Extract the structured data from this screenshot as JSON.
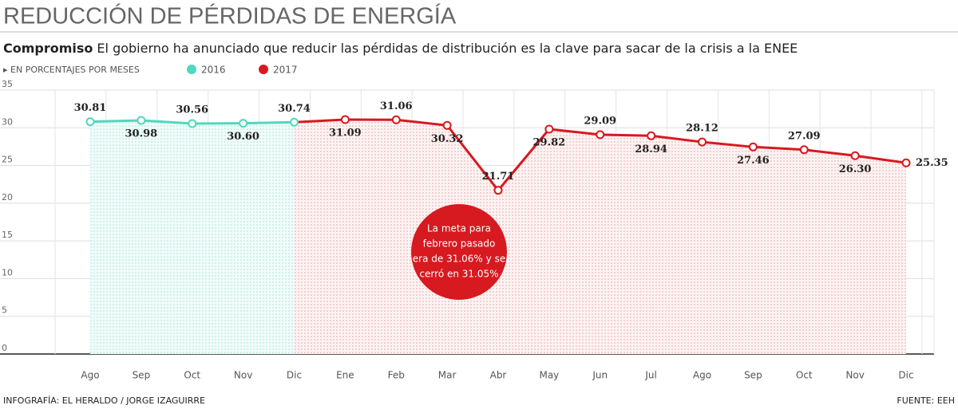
{
  "chart_data": {
    "type": "line",
    "title": "REDUCCIÓN DE PÉRDIDAS DE ENERGÍA",
    "subtitle_lead": "Compromiso",
    "subtitle": "El gobierno ha anunciado que reducir las pérdidas de distribución es la clave para sacar de la crisis a la ENEE",
    "y_label": "EN PORCENTAJES POR MESES",
    "categories": [
      "Ago",
      "Sep",
      "Oct",
      "Nov",
      "Dic",
      "Ene",
      "Feb",
      "Mar",
      "Abr",
      "May",
      "Jun",
      "Jul",
      "Ago",
      "Sep",
      "Oct",
      "Nov",
      "Dic"
    ],
    "series": [
      {
        "name": "2016",
        "color": "#4fd8bd",
        "values": [
          30.81,
          30.98,
          30.56,
          30.6,
          30.74,
          null,
          null,
          null,
          null,
          null,
          null,
          null,
          null,
          null,
          null,
          null,
          null
        ]
      },
      {
        "name": "2017",
        "color": "#d71920",
        "values": [
          null,
          null,
          null,
          null,
          null,
          31.09,
          31.06,
          30.32,
          21.71,
          29.82,
          29.09,
          28.94,
          28.12,
          27.46,
          27.09,
          26.3,
          25.35
        ]
      }
    ],
    "ylim": [
      0,
      35
    ],
    "yticks": [
      0,
      5,
      10,
      15,
      20,
      25,
      30,
      35
    ],
    "grid": true,
    "annotation": [
      "La meta para",
      "febrero pasado",
      "era de 31.06% y se",
      "cerró en 31.05%"
    ],
    "credit": "INFOGRAFÍA: EL HERALDO / JORGE IZAGUIRRE",
    "source": "FUENTE: EEH"
  }
}
